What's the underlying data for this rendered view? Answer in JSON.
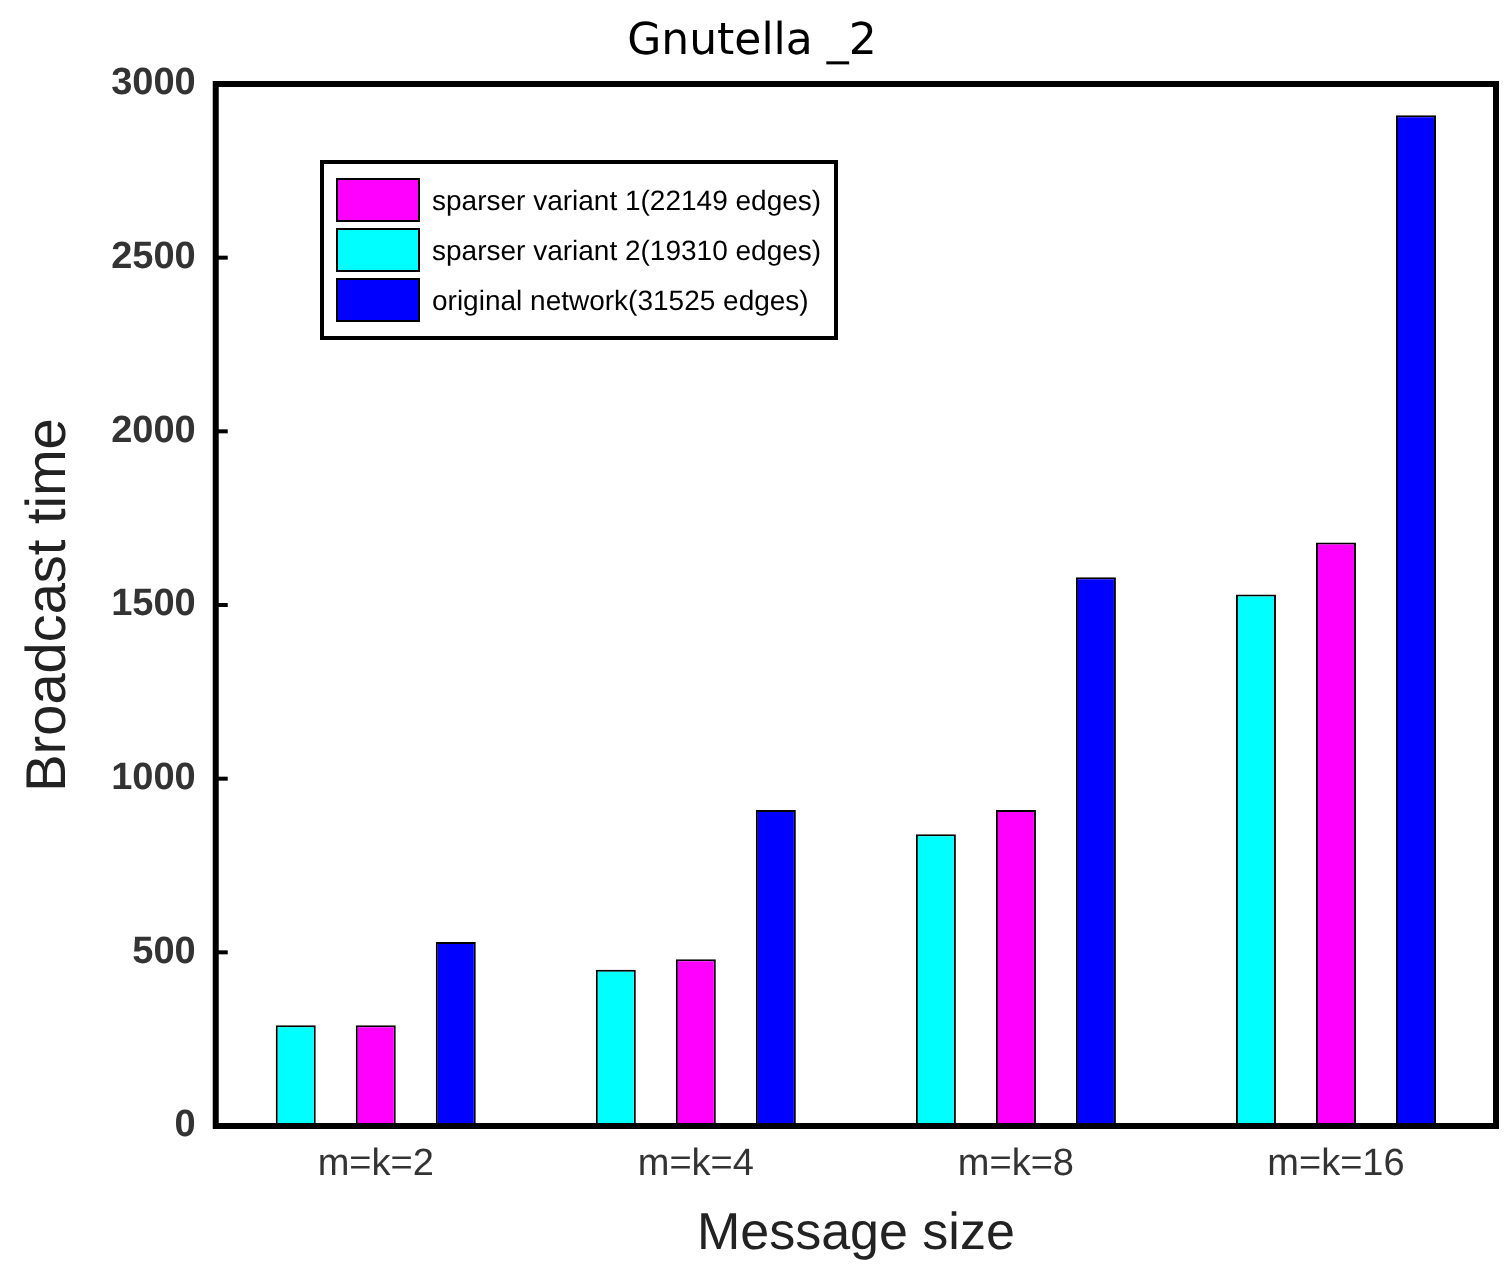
{
  "chart_data": {
    "type": "bar",
    "title": "Gnutella _2",
    "xlabel": "Message size",
    "ylabel": "Broadcast time",
    "categories": [
      "m=k=2",
      "m=k=4",
      "m=k=8",
      "m=k=16"
    ],
    "series": [
      {
        "name": "sparser variant 2(19310 edges)",
        "color": "#00ffff",
        "values": [
          290,
          450,
          840,
          1530
        ]
      },
      {
        "name": "sparser variant 1(22149 edges)",
        "color": "#ff00ff",
        "values": [
          290,
          480,
          910,
          1680
        ]
      },
      {
        "name": "original network(31525 edges)",
        "color": "#0000ff",
        "values": [
          530,
          910,
          1580,
          2910
        ]
      }
    ],
    "ylim": [
      0,
      3000
    ],
    "yticks": [
      0,
      500,
      1000,
      1500,
      2000,
      2500,
      3000
    ],
    "grid": false,
    "legend": "top left"
  }
}
